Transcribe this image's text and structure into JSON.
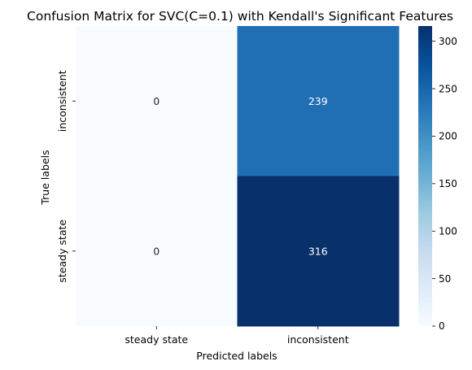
{
  "chart_data": {
    "type": "heatmap",
    "title": "Confusion Matrix for SVC(C=0.1) with Kendall's Significant Features",
    "xlabel": "Predicted labels",
    "ylabel": "True labels",
    "x_categories": [
      "steady state",
      "inconsistent"
    ],
    "y_categories": [
      "inconsistent",
      "steady state"
    ],
    "values": [
      [
        0,
        239
      ],
      [
        0,
        316
      ]
    ],
    "colormap": "Blues",
    "color_range": [
      0,
      316
    ],
    "colorbar": {
      "ticks": [
        0,
        50,
        100,
        150,
        200,
        250,
        300
      ],
      "tick_labels": [
        "0",
        "50",
        "100",
        "150",
        "200",
        "250",
        "300"
      ]
    },
    "grid": false,
    "legend": "none"
  }
}
